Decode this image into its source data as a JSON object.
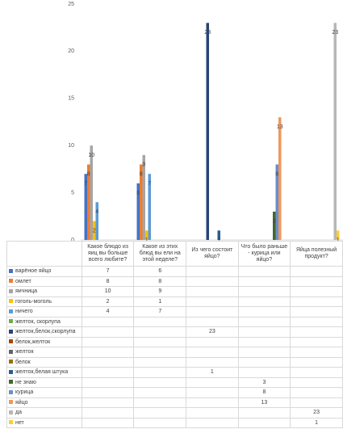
{
  "chart_data": {
    "type": "bar",
    "categories": [
      "Какое блюдо из яиц вы больше всего любите?",
      "Какое из этих блюд вы ели на этой неделе?",
      "Из чего состоит яйцо?",
      "Что было раньше - курица или яйцо?",
      "Яйца полезный продукт?"
    ],
    "ylim": [
      0,
      25
    ],
    "yticks": [
      0,
      5,
      10,
      15,
      20,
      25
    ],
    "grid": false,
    "series": [
      {
        "name": "варёное яйцо",
        "color": "#4472c4",
        "values": [
          7,
          6,
          null,
          null,
          null
        ]
      },
      {
        "name": "омлет",
        "color": "#ed7d31",
        "values": [
          8,
          8,
          null,
          null,
          null
        ]
      },
      {
        "name": "яичница",
        "color": "#a5a5a5",
        "values": [
          10,
          9,
          null,
          null,
          null
        ]
      },
      {
        "name": "гоголь-моголь",
        "color": "#ffc000",
        "values": [
          2,
          1,
          null,
          null,
          null
        ]
      },
      {
        "name": "ничего",
        "color": "#5b9bd5",
        "values": [
          4,
          7,
          null,
          null,
          null
        ]
      },
      {
        "name": "желток, скорлупа",
        "color": "#70ad47",
        "values": [
          null,
          null,
          null,
          null,
          null
        ]
      },
      {
        "name": "желток,белок,скорлупа",
        "color": "#264478",
        "values": [
          null,
          null,
          23,
          null,
          null
        ]
      },
      {
        "name": "белок,желток",
        "color": "#9e480e",
        "values": [
          null,
          null,
          null,
          null,
          null
        ]
      },
      {
        "name": "желток",
        "color": "#636363",
        "values": [
          null,
          null,
          null,
          null,
          null
        ]
      },
      {
        "name": "белок",
        "color": "#997300",
        "values": [
          null,
          null,
          null,
          null,
          null
        ]
      },
      {
        "name": "желток,белая штука",
        "color": "#255e91",
        "values": [
          null,
          null,
          1,
          null,
          null
        ]
      },
      {
        "name": "не знаю",
        "color": "#43682b",
        "values": [
          null,
          null,
          null,
          3,
          null
        ]
      },
      {
        "name": "курица",
        "color": "#698ed0",
        "values": [
          null,
          null,
          null,
          8,
          null
        ]
      },
      {
        "name": "яйцо",
        "color": "#f1975a",
        "values": [
          null,
          null,
          null,
          13,
          null
        ]
      },
      {
        "name": "да",
        "color": "#b7b7b7",
        "values": [
          null,
          null,
          null,
          null,
          23
        ]
      },
      {
        "name": "нет",
        "color": "#ffcd33",
        "values": [
          null,
          null,
          null,
          null,
          1
        ]
      }
    ]
  }
}
